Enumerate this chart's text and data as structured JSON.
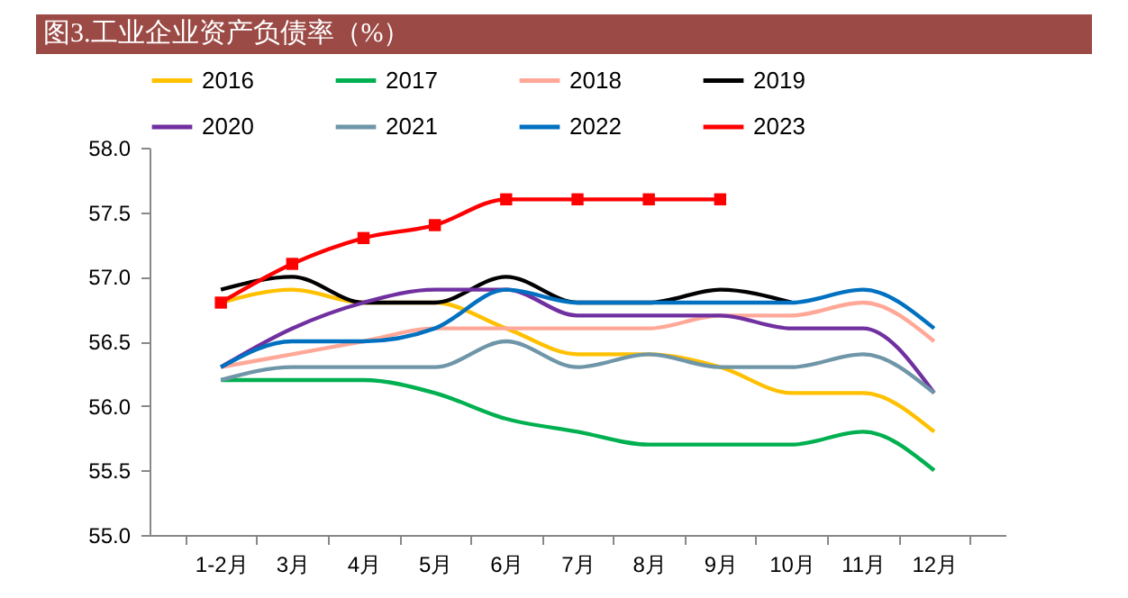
{
  "chart_data": {
    "type": "line",
    "title": "图3.工业企业资产负债率（%）",
    "categories": [
      "1-2月",
      "3月",
      "4月",
      "5月",
      "6月",
      "7月",
      "8月",
      "9月",
      "10月",
      "11月",
      "12月"
    ],
    "series": [
      {
        "name": "2016",
        "color": "#ffc000",
        "values": [
          56.8,
          56.9,
          56.8,
          56.8,
          56.6,
          56.4,
          56.4,
          56.3,
          56.1,
          56.1,
          55.8
        ]
      },
      {
        "name": "2017",
        "color": "#00b050",
        "values": [
          56.2,
          56.2,
          56.2,
          56.1,
          55.9,
          55.8,
          55.7,
          55.7,
          55.7,
          55.8,
          55.5
        ]
      },
      {
        "name": "2018",
        "color": "#ffa898",
        "values": [
          56.3,
          56.4,
          56.5,
          56.6,
          56.6,
          56.6,
          56.6,
          56.7,
          56.7,
          56.8,
          56.5
        ]
      },
      {
        "name": "2019",
        "color": "#000000",
        "values": [
          56.9,
          57.0,
          56.8,
          56.8,
          57.0,
          56.8,
          56.8,
          56.9,
          56.8,
          null,
          null
        ]
      },
      {
        "name": "2020",
        "color": "#7030a0",
        "values": [
          56.3,
          56.6,
          56.8,
          56.9,
          56.9,
          56.7,
          56.7,
          56.7,
          56.6,
          56.6,
          56.1
        ]
      },
      {
        "name": "2021",
        "color": "#6f96a8",
        "values": [
          56.2,
          56.3,
          56.3,
          56.3,
          56.5,
          56.3,
          56.4,
          56.3,
          56.3,
          56.4,
          56.1
        ]
      },
      {
        "name": "2022",
        "color": "#0070c0",
        "values": [
          56.3,
          56.5,
          56.5,
          56.6,
          56.9,
          56.8,
          56.8,
          56.8,
          56.8,
          56.9,
          56.6
        ]
      },
      {
        "name": "2023",
        "color": "#ff0000",
        "marker": "square",
        "values": [
          56.8,
          57.1,
          57.3,
          57.4,
          57.6,
          57.6,
          57.6,
          57.6,
          null,
          null,
          null
        ]
      }
    ],
    "ylim": [
      55.0,
      58.0
    ],
    "yticks": [
      {
        "value": 55.0,
        "label": "55.0"
      },
      {
        "value": 55.5,
        "label": "55.5"
      },
      {
        "value": 56.0,
        "label": "56.0"
      },
      {
        "value": 56.5,
        "label": "56.5"
      },
      {
        "value": 57.0,
        "label": "57.0"
      },
      {
        "value": 57.5,
        "label": "57.5"
      },
      {
        "value": 58.0,
        "label": "58.0"
      }
    ],
    "grid": false,
    "legend": "top",
    "marker": "none",
    "line_style": "solid"
  }
}
